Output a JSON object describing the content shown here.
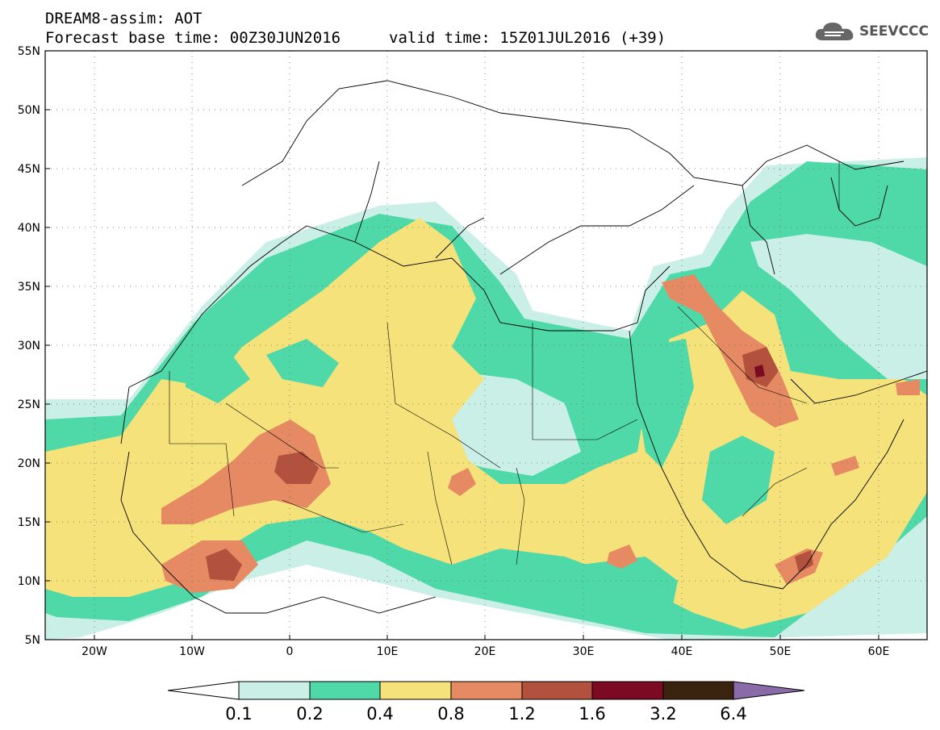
{
  "header": {
    "line1": "DREAM8-assim: AOT",
    "base_time": "Forecast base time: 00Z30JUN2016",
    "valid_time": "valid time: 15Z01JUL2016 (+39)"
  },
  "logo": {
    "text": "SEEVCCC",
    "icon": "cloud-icon"
  },
  "axes": {
    "lon_labels": [
      "20W",
      "10W",
      "0",
      "10E",
      "20E",
      "30E",
      "40E",
      "50E",
      "60E"
    ],
    "lat_labels": [
      "55N",
      "50N",
      "45N",
      "40N",
      "35N",
      "30N",
      "25N",
      "20N",
      "15N",
      "10N",
      "5N"
    ]
  },
  "colorbar": {
    "labels": [
      "0.1",
      "0.2",
      "0.4",
      "0.8",
      "1.2",
      "1.6",
      "3.2",
      "6.4"
    ],
    "colors": [
      "#ffffff",
      "#c9efe6",
      "#4fd8a8",
      "#f5e27a",
      "#e58a62",
      "#b2523e",
      "#7b0a22",
      "#3a2410",
      "#8a6aa8"
    ]
  }
}
